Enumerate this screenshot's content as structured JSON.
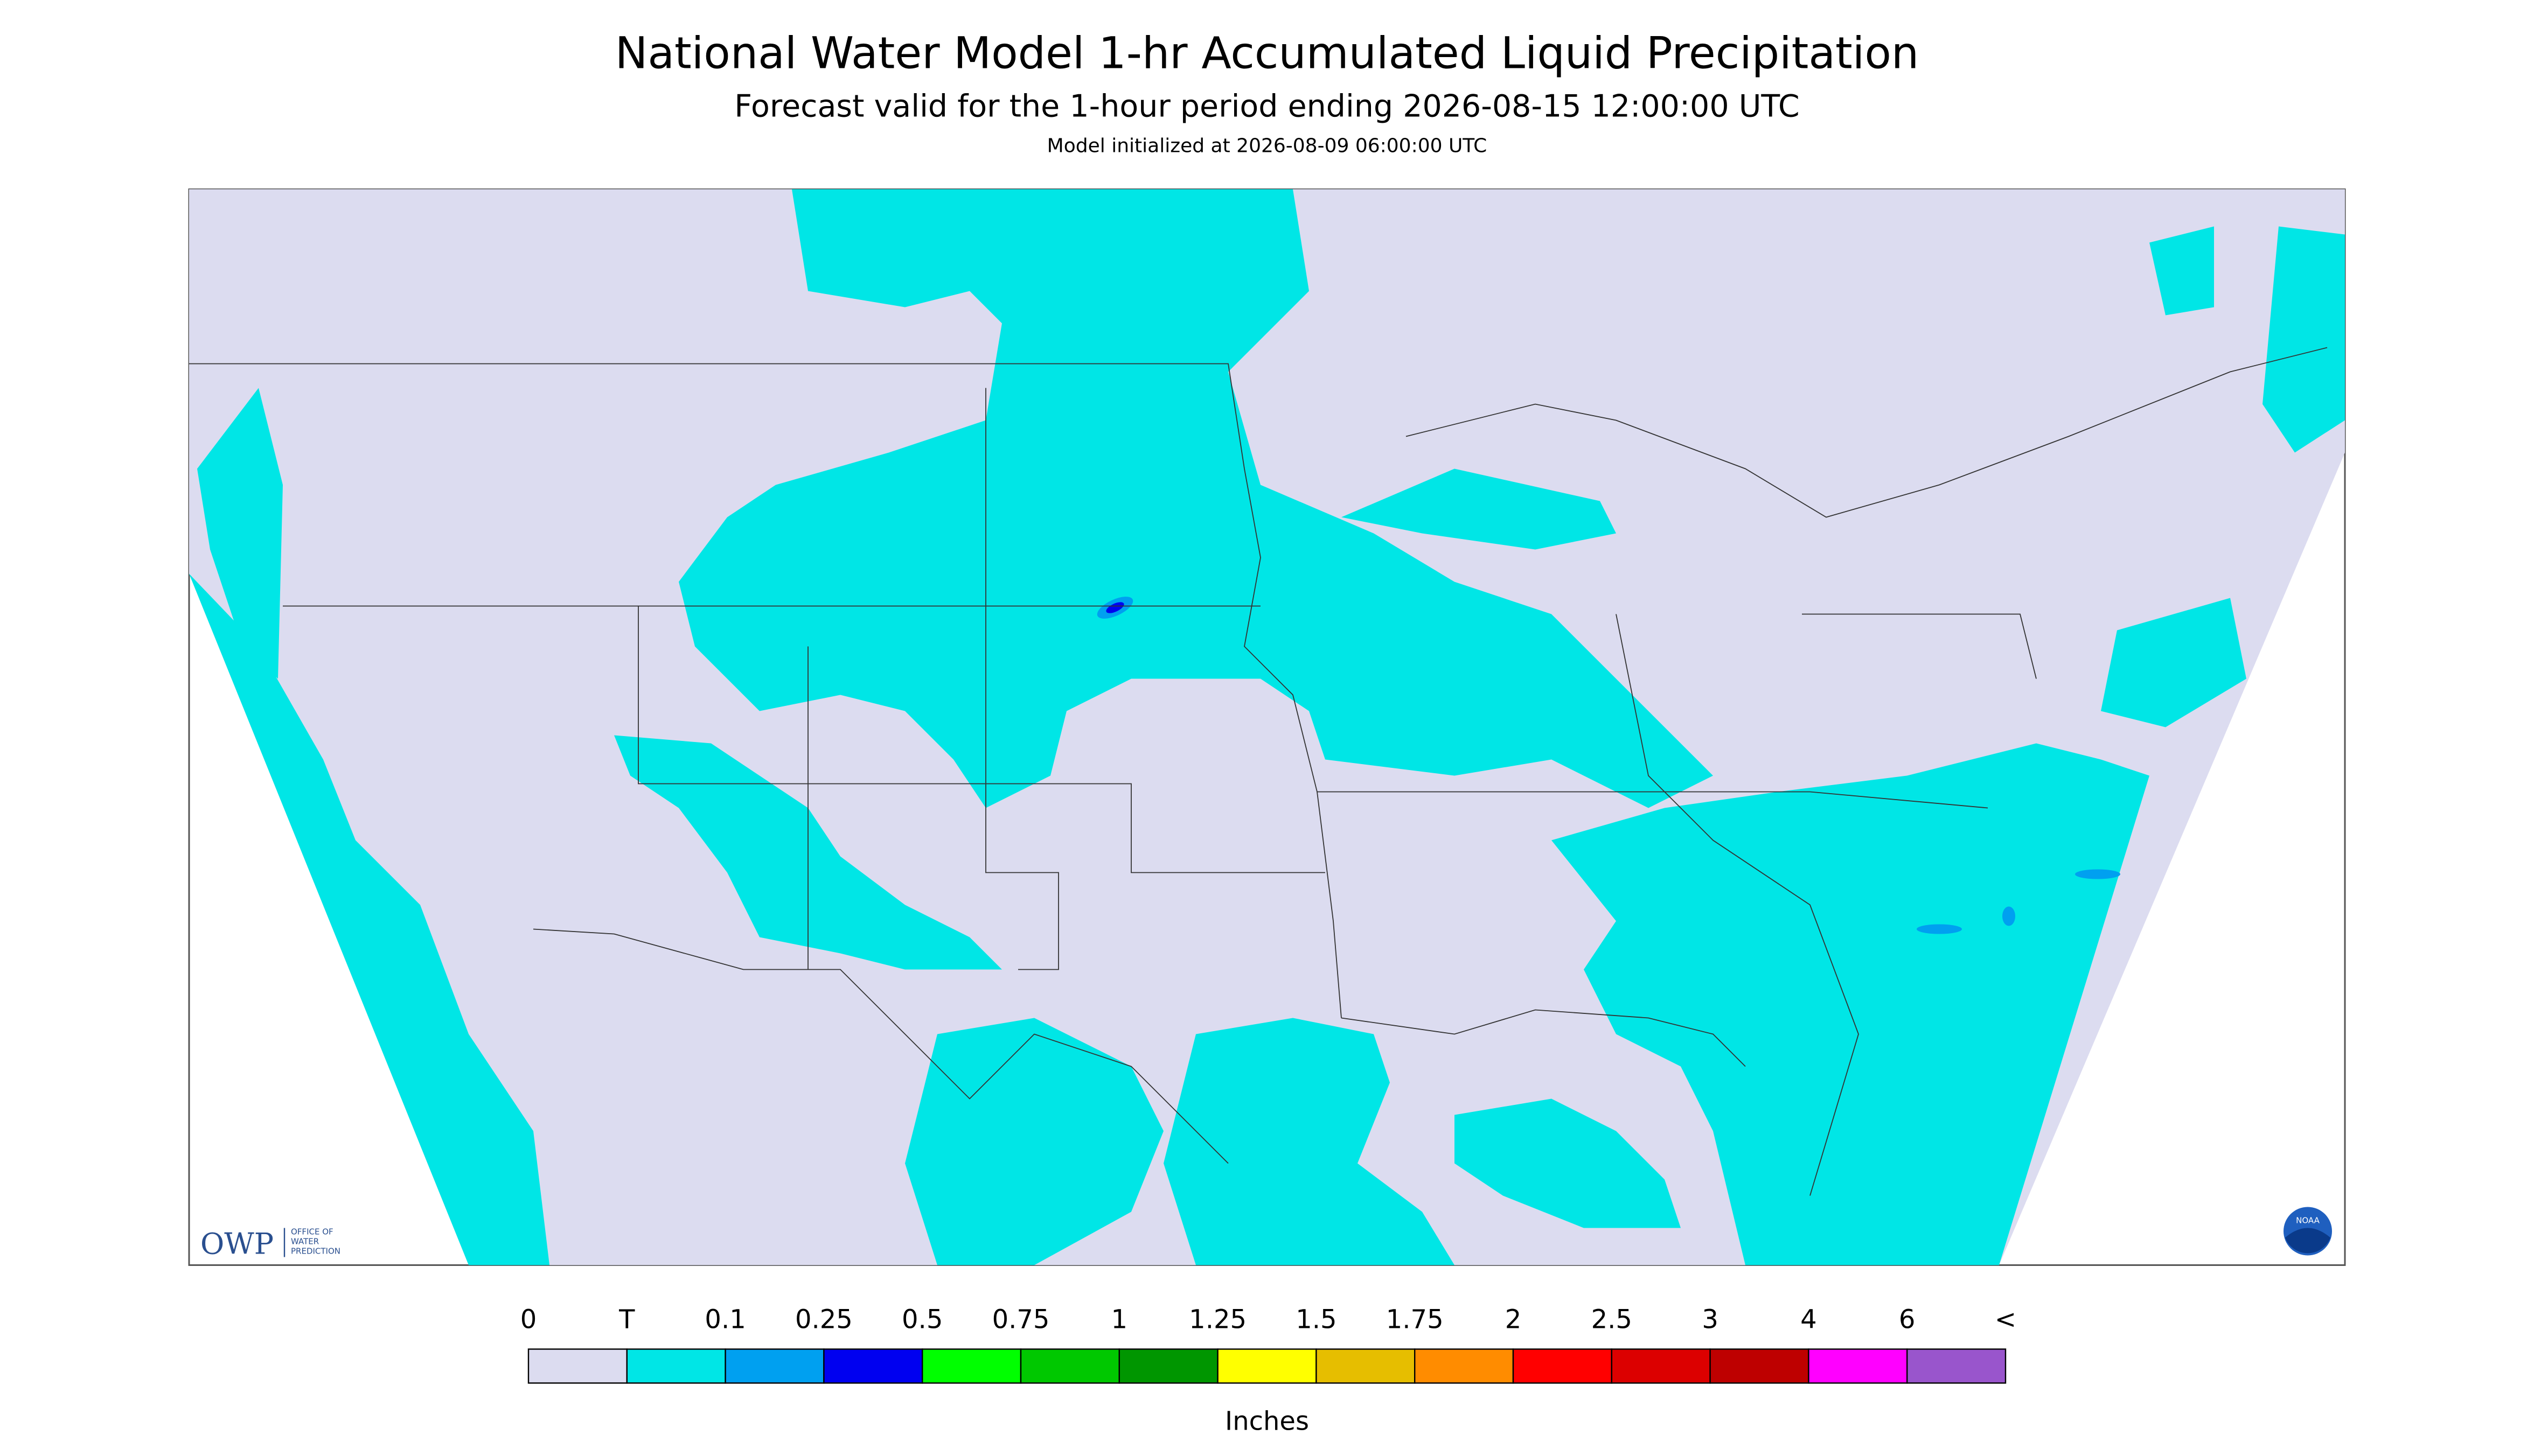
{
  "header": {
    "title": "National Water Model 1-hr Accumulated Liquid Precipitation",
    "subtitle": "Forecast valid for the 1-hour period ending 2026-08-15 12:00:00 UTC",
    "initialized": "Model initialized at 2026-08-09 06:00:00 UTC"
  },
  "logos": {
    "owp": "OWP",
    "owp_lines": [
      "OFFICE OF",
      "WATER",
      "PREDICTION"
    ],
    "noaa": "NOAA"
  },
  "legend": {
    "labels": [
      "0",
      "T",
      "0.1",
      "0.25",
      "0.5",
      "0.75",
      "1",
      "1.25",
      "1.5",
      "1.75",
      "2",
      "2.5",
      "3",
      "4",
      "6",
      "<"
    ],
    "colors": [
      "#dcdcf0",
      "#00e6e6",
      "#00a0f0",
      "#0000f0",
      "#00ff00",
      "#00c800",
      "#009600",
      "#ffff00",
      "#e6be00",
      "#ff8c00",
      "#ff0000",
      "#dc0000",
      "#be0000",
      "#ff00ff",
      "#9955cc"
    ],
    "unit": "Inches"
  }
}
